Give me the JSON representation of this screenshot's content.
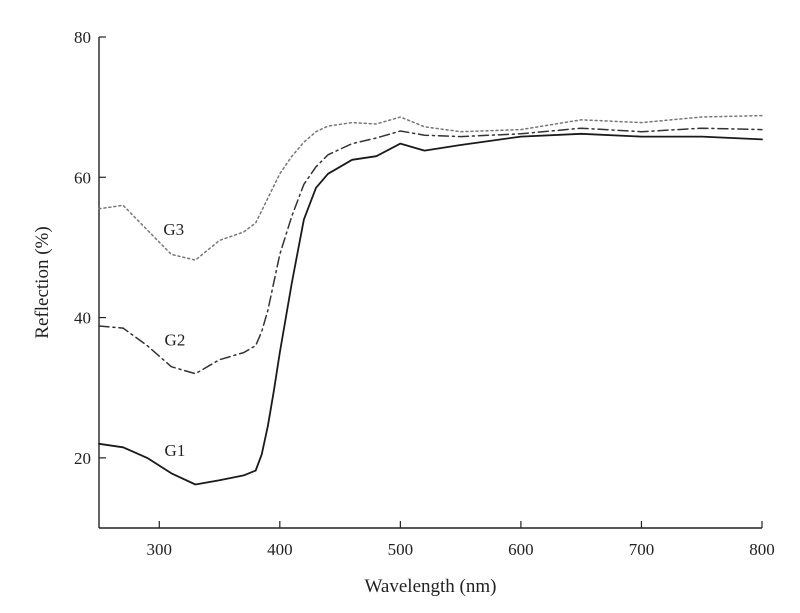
{
  "chart_data": {
    "type": "line",
    "title": "",
    "xlabel": "Wavelength (nm)",
    "ylabel": "Reflection (%)",
    "xlim": [
      250,
      800
    ],
    "ylim": [
      10,
      80
    ],
    "xticks": [
      300,
      400,
      500,
      600,
      700,
      800
    ],
    "yticks": [
      20,
      40,
      60,
      80
    ],
    "grid": false,
    "series": [
      {
        "name": "G1",
        "color": "#1a1a1a",
        "dash": "solid",
        "label_at": [
          313,
          20.3
        ],
        "x": [
          250,
          270,
          290,
          310,
          330,
          350,
          370,
          380,
          385,
          390,
          395,
          400,
          410,
          420,
          430,
          440,
          460,
          480,
          500,
          520,
          550,
          600,
          650,
          700,
          750,
          800
        ],
        "y": [
          22.0,
          21.5,
          20.0,
          17.8,
          16.2,
          16.8,
          17.5,
          18.2,
          20.5,
          24.5,
          29.5,
          35.0,
          45.0,
          54.0,
          58.5,
          60.5,
          62.5,
          63.0,
          64.8,
          63.8,
          64.6,
          65.8,
          66.2,
          65.8,
          65.8,
          65.4
        ]
      },
      {
        "name": "G2",
        "color": "#333333",
        "dash": "10 4 2 4",
        "label_at": [
          313,
          36.0
        ],
        "x": [
          250,
          270,
          290,
          310,
          330,
          350,
          370,
          380,
          385,
          390,
          395,
          400,
          410,
          420,
          430,
          440,
          460,
          480,
          500,
          520,
          550,
          600,
          650,
          700,
          750,
          800
        ],
        "y": [
          38.8,
          38.5,
          36.0,
          33.0,
          32.0,
          34.0,
          35.0,
          36.0,
          38.0,
          41.0,
          45.0,
          49.0,
          54.5,
          59.0,
          61.5,
          63.2,
          64.8,
          65.6,
          66.6,
          66.0,
          65.8,
          66.2,
          67.0,
          66.5,
          67.0,
          66.8
        ]
      },
      {
        "name": "G3",
        "color": "#777777",
        "dash": "2 3",
        "label_at": [
          312,
          51.8
        ],
        "x": [
          250,
          270,
          290,
          310,
          330,
          350,
          370,
          380,
          390,
          400,
          410,
          420,
          430,
          440,
          460,
          480,
          500,
          520,
          550,
          600,
          650,
          700,
          750,
          800
        ],
        "y": [
          55.5,
          56.0,
          52.5,
          49.0,
          48.2,
          51.0,
          52.2,
          53.5,
          57.0,
          60.5,
          63.0,
          65.0,
          66.5,
          67.3,
          67.8,
          67.6,
          68.6,
          67.2,
          66.5,
          66.8,
          68.2,
          67.8,
          68.6,
          68.8
        ]
      }
    ]
  }
}
